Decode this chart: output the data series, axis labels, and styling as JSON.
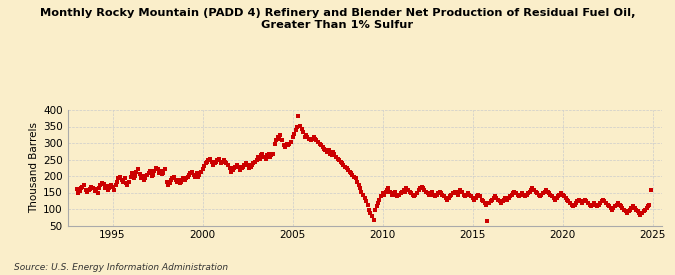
{
  "title": "Monthly Rocky Mountain (PADD 4) Refinery and Blender Net Production of Residual Fuel Oil,\nGreater Than 1% Sulfur",
  "ylabel": "Thousand Barrels",
  "source": "Source: U.S. Energy Information Administration",
  "bg_color": "#faeeca",
  "dot_color": "#cc0000",
  "dot_size": 5,
  "xlim": [
    1992.5,
    2025.5
  ],
  "ylim": [
    50,
    400
  ],
  "yticks": [
    50,
    100,
    150,
    200,
    250,
    300,
    350,
    400
  ],
  "xticks": [
    1995,
    2000,
    2005,
    2010,
    2015,
    2020,
    2025
  ],
  "grid_color": "#cccccc",
  "monthly_data": [
    [
      1993.0,
      160
    ],
    [
      1993.083,
      148
    ],
    [
      1993.167,
      155
    ],
    [
      1993.25,
      163
    ],
    [
      1993.333,
      168
    ],
    [
      1993.417,
      172
    ],
    [
      1993.5,
      158
    ],
    [
      1993.583,
      152
    ],
    [
      1993.667,
      157
    ],
    [
      1993.75,
      162
    ],
    [
      1993.833,
      168
    ],
    [
      1993.917,
      163
    ],
    [
      1994.0,
      155
    ],
    [
      1994.083,
      162
    ],
    [
      1994.167,
      148
    ],
    [
      1994.25,
      163
    ],
    [
      1994.333,
      172
    ],
    [
      1994.417,
      180
    ],
    [
      1994.5,
      175
    ],
    [
      1994.583,
      165
    ],
    [
      1994.667,
      170
    ],
    [
      1994.75,
      158
    ],
    [
      1994.833,
      163
    ],
    [
      1994.917,
      173
    ],
    [
      1995.0,
      168
    ],
    [
      1995.083,
      158
    ],
    [
      1995.167,
      173
    ],
    [
      1995.25,
      183
    ],
    [
      1995.333,
      193
    ],
    [
      1995.417,
      198
    ],
    [
      1995.5,
      188
    ],
    [
      1995.583,
      183
    ],
    [
      1995.667,
      193
    ],
    [
      1995.75,
      178
    ],
    [
      1995.833,
      173
    ],
    [
      1995.917,
      183
    ],
    [
      1996.0,
      198
    ],
    [
      1996.083,
      208
    ],
    [
      1996.167,
      193
    ],
    [
      1996.25,
      200
    ],
    [
      1996.333,
      212
    ],
    [
      1996.417,
      222
    ],
    [
      1996.5,
      205
    ],
    [
      1996.583,
      195
    ],
    [
      1996.667,
      200
    ],
    [
      1996.75,
      188
    ],
    [
      1996.833,
      193
    ],
    [
      1996.917,
      203
    ],
    [
      1997.0,
      210
    ],
    [
      1997.083,
      215
    ],
    [
      1997.167,
      200
    ],
    [
      1997.25,
      203
    ],
    [
      1997.333,
      215
    ],
    [
      1997.417,
      225
    ],
    [
      1997.5,
      220
    ],
    [
      1997.583,
      210
    ],
    [
      1997.667,
      215
    ],
    [
      1997.75,
      205
    ],
    [
      1997.833,
      210
    ],
    [
      1997.917,
      220
    ],
    [
      1998.0,
      183
    ],
    [
      1998.083,
      173
    ],
    [
      1998.167,
      178
    ],
    [
      1998.25,
      188
    ],
    [
      1998.333,
      193
    ],
    [
      1998.417,
      198
    ],
    [
      1998.5,
      188
    ],
    [
      1998.583,
      183
    ],
    [
      1998.667,
      188
    ],
    [
      1998.75,
      178
    ],
    [
      1998.833,
      183
    ],
    [
      1998.917,
      193
    ],
    [
      1999.0,
      188
    ],
    [
      1999.083,
      193
    ],
    [
      1999.167,
      198
    ],
    [
      1999.25,
      203
    ],
    [
      1999.333,
      210
    ],
    [
      1999.417,
      213
    ],
    [
      1999.5,
      203
    ],
    [
      1999.583,
      198
    ],
    [
      1999.667,
      208
    ],
    [
      1999.75,
      198
    ],
    [
      1999.833,
      203
    ],
    [
      1999.917,
      213
    ],
    [
      2000.0,
      220
    ],
    [
      2000.083,
      230
    ],
    [
      2000.167,
      240
    ],
    [
      2000.25,
      243
    ],
    [
      2000.333,
      250
    ],
    [
      2000.417,
      253
    ],
    [
      2000.5,
      243
    ],
    [
      2000.583,
      233
    ],
    [
      2000.667,
      238
    ],
    [
      2000.75,
      243
    ],
    [
      2000.833,
      248
    ],
    [
      2000.917,
      253
    ],
    [
      2001.0,
      238
    ],
    [
      2001.083,
      243
    ],
    [
      2001.167,
      248
    ],
    [
      2001.25,
      243
    ],
    [
      2001.333,
      238
    ],
    [
      2001.417,
      233
    ],
    [
      2001.5,
      223
    ],
    [
      2001.583,
      213
    ],
    [
      2001.667,
      218
    ],
    [
      2001.75,
      223
    ],
    [
      2001.833,
      228
    ],
    [
      2001.917,
      233
    ],
    [
      2002.0,
      228
    ],
    [
      2002.083,
      218
    ],
    [
      2002.167,
      223
    ],
    [
      2002.25,
      228
    ],
    [
      2002.333,
      233
    ],
    [
      2002.417,
      238
    ],
    [
      2002.5,
      233
    ],
    [
      2002.583,
      223
    ],
    [
      2002.667,
      228
    ],
    [
      2002.75,
      233
    ],
    [
      2002.833,
      238
    ],
    [
      2002.917,
      243
    ],
    [
      2003.0,
      248
    ],
    [
      2003.083,
      258
    ],
    [
      2003.167,
      253
    ],
    [
      2003.25,
      263
    ],
    [
      2003.333,
      268
    ],
    [
      2003.417,
      258
    ],
    [
      2003.5,
      253
    ],
    [
      2003.583,
      263
    ],
    [
      2003.667,
      268
    ],
    [
      2003.75,
      258
    ],
    [
      2003.833,
      263
    ],
    [
      2003.917,
      268
    ],
    [
      2004.0,
      298
    ],
    [
      2004.083,
      308
    ],
    [
      2004.167,
      318
    ],
    [
      2004.25,
      313
    ],
    [
      2004.333,
      323
    ],
    [
      2004.417,
      308
    ],
    [
      2004.5,
      293
    ],
    [
      2004.583,
      288
    ],
    [
      2004.667,
      298
    ],
    [
      2004.75,
      293
    ],
    [
      2004.833,
      298
    ],
    [
      2004.917,
      303
    ],
    [
      2005.0,
      318
    ],
    [
      2005.083,
      328
    ],
    [
      2005.167,
      338
    ],
    [
      2005.25,
      348
    ],
    [
      2005.333,
      383
    ],
    [
      2005.417,
      353
    ],
    [
      2005.5,
      343
    ],
    [
      2005.583,
      333
    ],
    [
      2005.667,
      318
    ],
    [
      2005.75,
      323
    ],
    [
      2005.833,
      318
    ],
    [
      2005.917,
      313
    ],
    [
      2006.0,
      308
    ],
    [
      2006.083,
      313
    ],
    [
      2006.167,
      318
    ],
    [
      2006.25,
      313
    ],
    [
      2006.333,
      308
    ],
    [
      2006.417,
      303
    ],
    [
      2006.5,
      298
    ],
    [
      2006.583,
      293
    ],
    [
      2006.667,
      288
    ],
    [
      2006.75,
      283
    ],
    [
      2006.833,
      278
    ],
    [
      2006.917,
      273
    ],
    [
      2007.0,
      278
    ],
    [
      2007.083,
      268
    ],
    [
      2007.167,
      263
    ],
    [
      2007.25,
      273
    ],
    [
      2007.333,
      268
    ],
    [
      2007.417,
      258
    ],
    [
      2007.5,
      253
    ],
    [
      2007.583,
      248
    ],
    [
      2007.667,
      243
    ],
    [
      2007.75,
      238
    ],
    [
      2007.833,
      233
    ],
    [
      2007.917,
      228
    ],
    [
      2008.0,
      223
    ],
    [
      2008.083,
      218
    ],
    [
      2008.167,
      213
    ],
    [
      2008.25,
      208
    ],
    [
      2008.333,
      203
    ],
    [
      2008.417,
      198
    ],
    [
      2008.5,
      193
    ],
    [
      2008.583,
      183
    ],
    [
      2008.667,
      173
    ],
    [
      2008.75,
      163
    ],
    [
      2008.833,
      153
    ],
    [
      2008.917,
      143
    ],
    [
      2009.0,
      133
    ],
    [
      2009.083,
      123
    ],
    [
      2009.167,
      113
    ],
    [
      2009.25,
      98
    ],
    [
      2009.333,
      88
    ],
    [
      2009.417,
      78
    ],
    [
      2009.5,
      68
    ],
    [
      2009.583,
      98
    ],
    [
      2009.667,
      108
    ],
    [
      2009.75,
      118
    ],
    [
      2009.833,
      128
    ],
    [
      2009.917,
      138
    ],
    [
      2010.0,
      148
    ],
    [
      2010.083,
      143
    ],
    [
      2010.167,
      153
    ],
    [
      2010.25,
      158
    ],
    [
      2010.333,
      163
    ],
    [
      2010.417,
      153
    ],
    [
      2010.5,
      143
    ],
    [
      2010.583,
      148
    ],
    [
      2010.667,
      153
    ],
    [
      2010.75,
      143
    ],
    [
      2010.833,
      138
    ],
    [
      2010.917,
      143
    ],
    [
      2011.0,
      148
    ],
    [
      2011.083,
      153
    ],
    [
      2011.167,
      158
    ],
    [
      2011.25,
      153
    ],
    [
      2011.333,
      163
    ],
    [
      2011.417,
      158
    ],
    [
      2011.5,
      153
    ],
    [
      2011.583,
      148
    ],
    [
      2011.667,
      143
    ],
    [
      2011.75,
      138
    ],
    [
      2011.833,
      143
    ],
    [
      2011.917,
      148
    ],
    [
      2012.0,
      158
    ],
    [
      2012.083,
      163
    ],
    [
      2012.167,
      168
    ],
    [
      2012.25,
      163
    ],
    [
      2012.333,
      158
    ],
    [
      2012.417,
      153
    ],
    [
      2012.5,
      148
    ],
    [
      2012.583,
      143
    ],
    [
      2012.667,
      148
    ],
    [
      2012.75,
      153
    ],
    [
      2012.833,
      143
    ],
    [
      2012.917,
      138
    ],
    [
      2013.0,
      143
    ],
    [
      2013.083,
      148
    ],
    [
      2013.167,
      153
    ],
    [
      2013.25,
      148
    ],
    [
      2013.333,
      143
    ],
    [
      2013.417,
      138
    ],
    [
      2013.5,
      133
    ],
    [
      2013.583,
      128
    ],
    [
      2013.667,
      133
    ],
    [
      2013.75,
      138
    ],
    [
      2013.833,
      143
    ],
    [
      2013.917,
      148
    ],
    [
      2014.0,
      153
    ],
    [
      2014.083,
      148
    ],
    [
      2014.167,
      143
    ],
    [
      2014.25,
      153
    ],
    [
      2014.333,
      158
    ],
    [
      2014.417,
      153
    ],
    [
      2014.5,
      143
    ],
    [
      2014.583,
      138
    ],
    [
      2014.667,
      143
    ],
    [
      2014.75,
      148
    ],
    [
      2014.833,
      143
    ],
    [
      2014.917,
      138
    ],
    [
      2015.0,
      133
    ],
    [
      2015.083,
      128
    ],
    [
      2015.167,
      133
    ],
    [
      2015.25,
      138
    ],
    [
      2015.333,
      143
    ],
    [
      2015.417,
      138
    ],
    [
      2015.5,
      128
    ],
    [
      2015.583,
      123
    ],
    [
      2015.667,
      118
    ],
    [
      2015.75,
      113
    ],
    [
      2015.833,
      63
    ],
    [
      2015.917,
      118
    ],
    [
      2016.0,
      123
    ],
    [
      2016.083,
      128
    ],
    [
      2016.167,
      133
    ],
    [
      2016.25,
      138
    ],
    [
      2016.333,
      133
    ],
    [
      2016.417,
      128
    ],
    [
      2016.5,
      123
    ],
    [
      2016.583,
      118
    ],
    [
      2016.667,
      123
    ],
    [
      2016.75,
      128
    ],
    [
      2016.833,
      133
    ],
    [
      2016.917,
      128
    ],
    [
      2017.0,
      133
    ],
    [
      2017.083,
      138
    ],
    [
      2017.167,
      143
    ],
    [
      2017.25,
      148
    ],
    [
      2017.333,
      153
    ],
    [
      2017.417,
      148
    ],
    [
      2017.5,
      143
    ],
    [
      2017.583,
      138
    ],
    [
      2017.667,
      143
    ],
    [
      2017.75,
      148
    ],
    [
      2017.833,
      143
    ],
    [
      2017.917,
      138
    ],
    [
      2018.0,
      143
    ],
    [
      2018.083,
      148
    ],
    [
      2018.167,
      153
    ],
    [
      2018.25,
      158
    ],
    [
      2018.333,
      163
    ],
    [
      2018.417,
      158
    ],
    [
      2018.5,
      153
    ],
    [
      2018.583,
      148
    ],
    [
      2018.667,
      143
    ],
    [
      2018.75,
      138
    ],
    [
      2018.833,
      143
    ],
    [
      2018.917,
      148
    ],
    [
      2019.0,
      153
    ],
    [
      2019.083,
      158
    ],
    [
      2019.167,
      153
    ],
    [
      2019.25,
      148
    ],
    [
      2019.333,
      143
    ],
    [
      2019.417,
      138
    ],
    [
      2019.5,
      133
    ],
    [
      2019.583,
      128
    ],
    [
      2019.667,
      133
    ],
    [
      2019.75,
      138
    ],
    [
      2019.833,
      143
    ],
    [
      2019.917,
      148
    ],
    [
      2020.0,
      143
    ],
    [
      2020.083,
      138
    ],
    [
      2020.167,
      133
    ],
    [
      2020.25,
      128
    ],
    [
      2020.333,
      123
    ],
    [
      2020.417,
      118
    ],
    [
      2020.5,
      113
    ],
    [
      2020.583,
      108
    ],
    [
      2020.667,
      113
    ],
    [
      2020.75,
      118
    ],
    [
      2020.833,
      123
    ],
    [
      2020.917,
      128
    ],
    [
      2021.0,
      123
    ],
    [
      2021.083,
      118
    ],
    [
      2021.167,
      123
    ],
    [
      2021.25,
      128
    ],
    [
      2021.333,
      123
    ],
    [
      2021.417,
      118
    ],
    [
      2021.5,
      113
    ],
    [
      2021.583,
      108
    ],
    [
      2021.667,
      113
    ],
    [
      2021.75,
      118
    ],
    [
      2021.833,
      113
    ],
    [
      2021.917,
      108
    ],
    [
      2022.0,
      113
    ],
    [
      2022.083,
      118
    ],
    [
      2022.167,
      123
    ],
    [
      2022.25,
      128
    ],
    [
      2022.333,
      123
    ],
    [
      2022.417,
      118
    ],
    [
      2022.5,
      113
    ],
    [
      2022.583,
      108
    ],
    [
      2022.667,
      103
    ],
    [
      2022.75,
      98
    ],
    [
      2022.833,
      103
    ],
    [
      2022.917,
      108
    ],
    [
      2023.0,
      113
    ],
    [
      2023.083,
      118
    ],
    [
      2023.167,
      113
    ],
    [
      2023.25,
      108
    ],
    [
      2023.333,
      103
    ],
    [
      2023.417,
      98
    ],
    [
      2023.5,
      93
    ],
    [
      2023.583,
      88
    ],
    [
      2023.667,
      93
    ],
    [
      2023.75,
      98
    ],
    [
      2023.833,
      103
    ],
    [
      2023.917,
      108
    ],
    [
      2024.0,
      103
    ],
    [
      2024.083,
      98
    ],
    [
      2024.167,
      93
    ],
    [
      2024.25,
      88
    ],
    [
      2024.333,
      83
    ],
    [
      2024.417,
      88
    ],
    [
      2024.5,
      93
    ],
    [
      2024.583,
      98
    ],
    [
      2024.667,
      103
    ],
    [
      2024.75,
      108
    ],
    [
      2024.833,
      113
    ],
    [
      2024.917,
      158
    ]
  ]
}
